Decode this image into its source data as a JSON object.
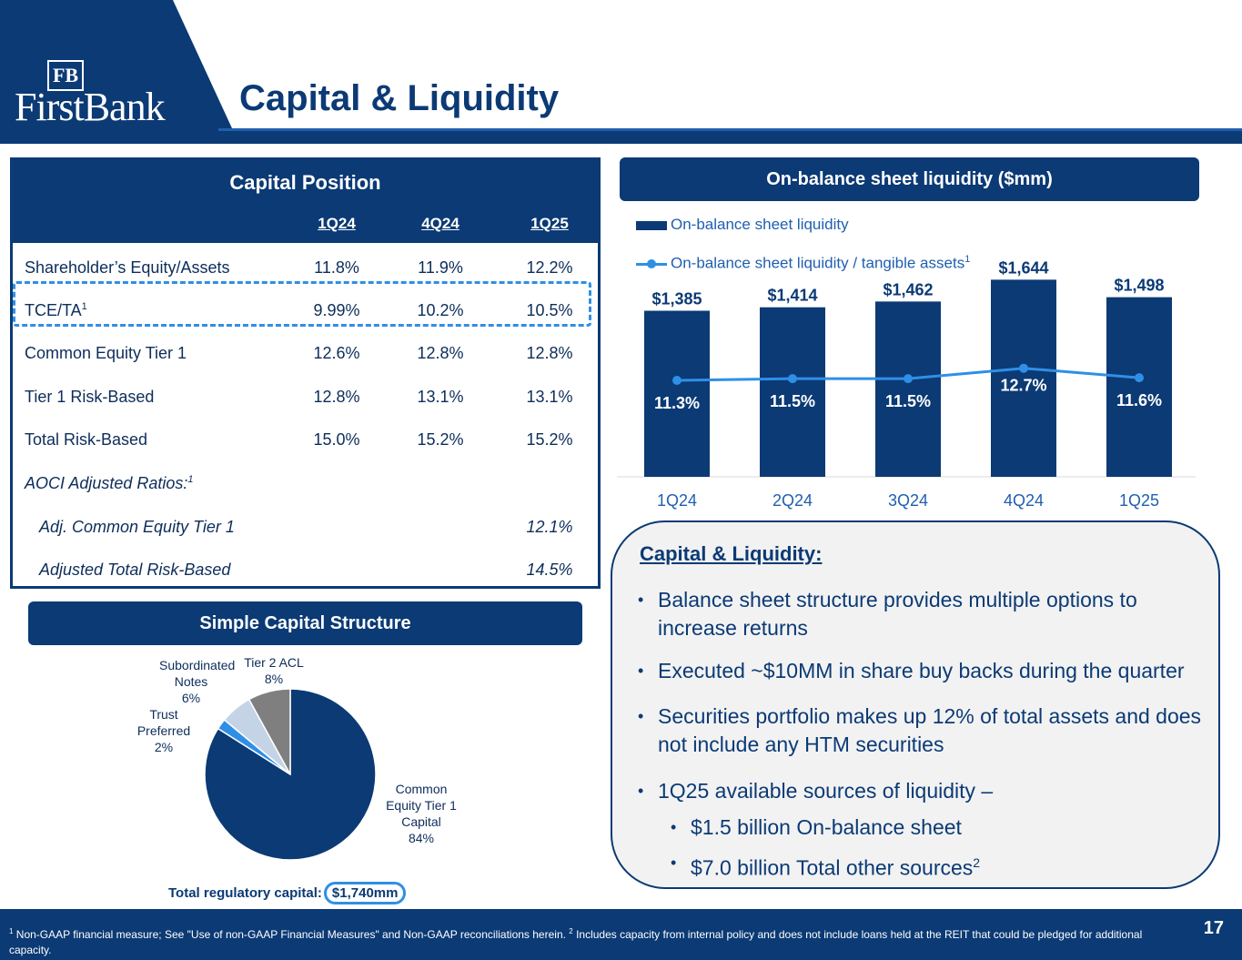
{
  "header": {
    "logo_mark": "FB",
    "logo_text": "FirstBank",
    "title": "Capital & Liquidity",
    "colors": {
      "navy": "#0b3a75",
      "accent": "#2f8fe6"
    }
  },
  "capital_position": {
    "title": "Capital Position",
    "columns": [
      "1Q24",
      "4Q24",
      "1Q25"
    ],
    "rows": [
      {
        "label": "Shareholder’s Equity/Assets",
        "sup": "",
        "values": [
          "11.8%",
          "11.9%",
          "12.2%"
        ]
      },
      {
        "label": "TCE/TA",
        "sup": "1",
        "values": [
          "9.99%",
          "10.2%",
          "10.5%"
        ]
      },
      {
        "label": "Common Equity Tier 1",
        "sup": "",
        "values": [
          "12.6%",
          "12.8%",
          "12.8%"
        ]
      },
      {
        "label": "Tier 1 Risk-Based",
        "sup": "",
        "values": [
          "12.8%",
          "13.1%",
          "13.1%"
        ]
      },
      {
        "label": "Total Risk-Based",
        "sup": "",
        "values": [
          "15.0%",
          "15.2%",
          "15.2%"
        ]
      }
    ],
    "aoci_label": "AOCI Adjusted Ratios:",
    "aoci_sup": "1",
    "aoci_rows": [
      {
        "label": "Adj. Common Equity Tier 1",
        "value": "12.1%"
      },
      {
        "label": "Adjusted Total Risk-Based",
        "value": "14.5%"
      }
    ]
  },
  "liquidity_header": "On-balance sheet liquidity ($mm)",
  "chart_data": [
    {
      "type": "bar",
      "title": "On-balance sheet liquidity ($mm)",
      "categories": [
        "1Q24",
        "2Q24",
        "3Q24",
        "4Q24",
        "1Q25"
      ],
      "series": [
        {
          "name": "On-balance sheet liquidity",
          "values": [
            1385,
            1414,
            1462,
            1644,
            1498
          ],
          "labels": [
            "$1,385",
            "$1,414",
            "$1,462",
            "$1,644",
            "$1,498"
          ]
        },
        {
          "name": "On-balance sheet liquidity / tangible assets",
          "sup": "1",
          "type": "line",
          "values": [
            11.3,
            11.5,
            11.5,
            12.7,
            11.6
          ],
          "labels": [
            "11.3%",
            "11.5%",
            "11.5%",
            "12.7%",
            "11.6%"
          ]
        }
      ],
      "ylim": [
        0,
        1700
      ],
      "line_ylim": [
        0,
        16
      ],
      "grid": false,
      "legend": "top-left"
    },
    {
      "type": "pie",
      "title": "Simple Capital Structure",
      "slices": [
        {
          "name": "Common Equity Tier 1 Capital",
          "value": 84,
          "label": "84%",
          "color": "#0b3a75"
        },
        {
          "name": "Trust Preferred",
          "value": 2,
          "label": "2%",
          "color": "#2f8fe6"
        },
        {
          "name": "Subordinated Notes",
          "value": 6,
          "label": "6%",
          "color": "#c4d4e6"
        },
        {
          "name": "Tier 2 ACL",
          "value": 8,
          "label": "8%",
          "color": "#7f7f7f"
        }
      ]
    }
  ],
  "capital_structure": {
    "title": "Simple Capital Structure",
    "total_label": "Total regulatory capital:",
    "total_value": "$1,740mm"
  },
  "capital_liquidity": {
    "title": "Capital & Liquidity:",
    "bullets": [
      "Balance sheet structure provides multiple options to increase returns",
      "Executed ~$10MM in share buy backs during the quarter",
      "Securities portfolio makes up 12% of total assets and does not include any HTM securities",
      "1Q25 available sources of liquidity –"
    ],
    "sub_bullets": [
      "$1.5 billion On-balance sheet",
      "$7.0 billion Total other sources"
    ],
    "sub_sup": "2",
    "bullet_char": "•"
  },
  "footer": {
    "fn1_mark": "1",
    "fn1": " Non-GAAP financial measure; See \"Use of non-GAAP Financial Measures\" and Non-GAAP reconciliations herein. ",
    "fn2_mark": "2",
    "fn2": " Includes capacity from internal policy and does not include loans held at the REIT that could be pledged for additional capacity.",
    "page": "17"
  }
}
